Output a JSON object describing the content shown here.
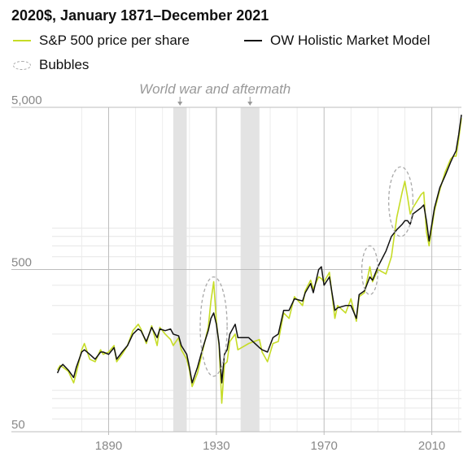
{
  "chart_data": {
    "type": "line",
    "title": "2020$, January 1871–December 2021",
    "y_scale": "log",
    "ylim": [
      50,
      5000
    ],
    "xlim": [
      1869,
      2021
    ],
    "y_ticks": [
      "5,000",
      "500",
      "50"
    ],
    "x_ticks": [
      "1890",
      "1930",
      "1970",
      "2010"
    ],
    "x_tick_values": [
      1890,
      1930,
      1970,
      2010
    ],
    "y_tick_values": [
      5000,
      500,
      50
    ],
    "grid": true,
    "legend_position": "top-left",
    "legend": [
      {
        "label": "S&P 500 price per share",
        "color": "#c6dc27",
        "kind": "line"
      },
      {
        "label": "OW Holistic Market Model",
        "color": "#111111",
        "kind": "line"
      },
      {
        "label": "Bubbles",
        "color": "#aaaaaa",
        "kind": "dashed-ellipse"
      }
    ],
    "annotation": {
      "text": "World war and aftermath",
      "periods": [
        [
          1914,
          1919
        ],
        [
          1939,
          1946
        ]
      ]
    },
    "bubbles": [
      {
        "x_range": [
          1924,
          1934
        ],
        "y_range": [
          110,
          450
        ]
      },
      {
        "x_range": [
          1984,
          1990
        ],
        "y_range": [
          350,
          700
        ]
      },
      {
        "x_range": [
          1994,
          2003
        ],
        "y_range": [
          800,
          2150
        ]
      }
    ],
    "series": [
      {
        "name": "S&P 500 price per share",
        "color": "#c6dc27",
        "x": [
          1871,
          1872,
          1873,
          1875,
          1877,
          1878,
          1880,
          1881,
          1883,
          1885,
          1887,
          1888,
          1890,
          1892,
          1893,
          1895,
          1897,
          1899,
          1901,
          1902,
          1904,
          1906,
          1908,
          1909,
          1911,
          1913,
          1914,
          1916,
          1917,
          1919,
          1920,
          1921,
          1923,
          1925,
          1927,
          1928,
          1929,
          1930,
          1931,
          1932,
          1933,
          1934,
          1935,
          1937,
          1938,
          1942,
          1946,
          1947,
          1949,
          1951,
          1953,
          1955,
          1957,
          1959,
          1962,
          1963,
          1965,
          1966,
          1968,
          1969,
          1970,
          1972,
          1974,
          1975,
          1978,
          1980,
          1982,
          1983,
          1985,
          1987,
          1988,
          1990,
          1993,
          1995,
          1997,
          1999,
          2000,
          2001,
          2002,
          2003,
          2006,
          2007,
          2008,
          2009,
          2011,
          2013,
          2015,
          2017,
          2018,
          2019,
          2020,
          2021
        ],
        "y": [
          120,
          128,
          125,
          118,
          100,
          115,
          160,
          175,
          140,
          135,
          160,
          150,
          155,
          170,
          135,
          150,
          170,
          210,
          230,
          215,
          175,
          225,
          170,
          220,
          200,
          185,
          170,
          190,
          160,
          140,
          120,
          95,
          115,
          160,
          220,
          320,
          420,
          240,
          170,
          75,
          130,
          135,
          180,
          200,
          160,
          175,
          185,
          155,
          135,
          175,
          180,
          270,
          250,
          340,
          300,
          370,
          430,
          380,
          450,
          440,
          420,
          480,
          250,
          300,
          270,
          330,
          240,
          340,
          360,
          520,
          420,
          500,
          470,
          600,
          1050,
          1500,
          1750,
          1400,
          1100,
          1200,
          1450,
          1500,
          850,
          700,
          1150,
          1550,
          2000,
          2400,
          2500,
          2500,
          3200,
          4300
        ]
      },
      {
        "name": "OW Holistic Market Model",
        "color": "#111111",
        "x": [
          1871,
          1872,
          1873,
          1875,
          1877,
          1878,
          1880,
          1881,
          1883,
          1885,
          1887,
          1888,
          1890,
          1892,
          1893,
          1895,
          1897,
          1899,
          1901,
          1902,
          1904,
          1906,
          1908,
          1909,
          1911,
          1913,
          1914,
          1916,
          1917,
          1919,
          1920,
          1921,
          1923,
          1925,
          1927,
          1928,
          1929,
          1930,
          1931,
          1932,
          1933,
          1934,
          1935,
          1937,
          1938,
          1942,
          1946,
          1947,
          1949,
          1951,
          1953,
          1955,
          1957,
          1959,
          1962,
          1963,
          1965,
          1966,
          1968,
          1969,
          1970,
          1972,
          1974,
          1975,
          1978,
          1980,
          1982,
          1983,
          1985,
          1987,
          1988,
          1990,
          1993,
          1995,
          1997,
          1999,
          2000,
          2001,
          2002,
          2003,
          2006,
          2007,
          2008,
          2009,
          2011,
          2013,
          2015,
          2017,
          2018,
          2019,
          2020,
          2021
        ],
        "y": [
          115,
          125,
          130,
          120,
          108,
          125,
          155,
          160,
          150,
          140,
          155,
          155,
          150,
          165,
          140,
          155,
          170,
          200,
          215,
          210,
          180,
          220,
          190,
          215,
          210,
          215,
          200,
          195,
          170,
          150,
          125,
          100,
          125,
          165,
          210,
          250,
          270,
          230,
          175,
          100,
          150,
          160,
          200,
          230,
          190,
          190,
          165,
          160,
          155,
          190,
          200,
          280,
          280,
          330,
          320,
          360,
          410,
          360,
          500,
          520,
          400,
          450,
          280,
          290,
          300,
          300,
          250,
          350,
          370,
          450,
          430,
          520,
          650,
          800,
          880,
          950,
          1000,
          1000,
          950,
          1100,
          1200,
          1250,
          1000,
          750,
          1200,
          1600,
          1900,
          2300,
          2500,
          2700,
          3400,
          4500
        ]
      }
    ]
  }
}
